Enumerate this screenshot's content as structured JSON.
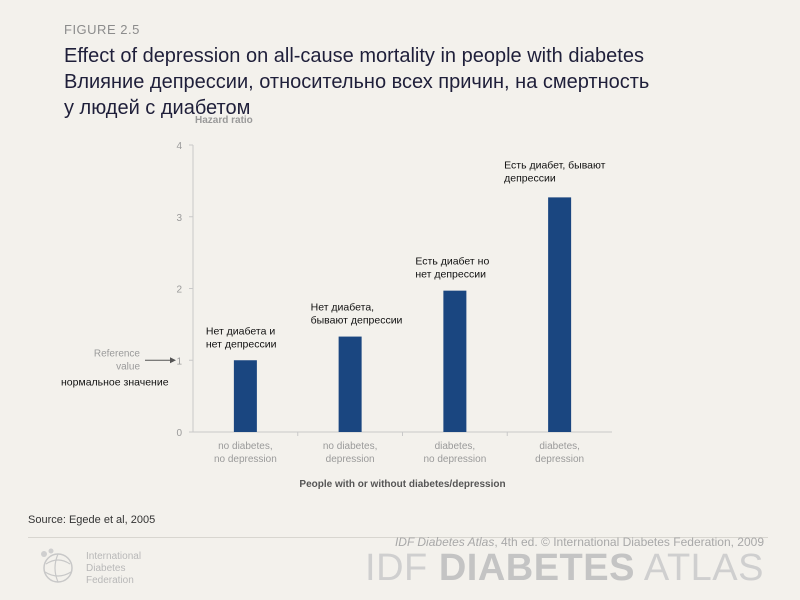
{
  "figure": {
    "label": "FIGURE  2.5",
    "title_en": "Effect of depression on all-cause  mortality in people with diabetes",
    "title_ru_line1": "Влияние депрессии, относительно всех причин, на смертность",
    "title_ru_line2": "у людей с диабетом"
  },
  "chart_data": {
    "type": "bar",
    "ylabel": "Hazard ratio",
    "xlabel": "People with or without diabetes/depression",
    "ylim": [
      0,
      4
    ],
    "yticks": [
      0,
      1,
      2,
      3,
      4
    ],
    "categories": [
      [
        "no diabetes,",
        "no depression"
      ],
      [
        "no diabetes,",
        "depression"
      ],
      [
        "diabetes,",
        "no depression"
      ],
      [
        "diabetes,",
        "depression"
      ]
    ],
    "values": [
      1.0,
      1.33,
      1.97,
      3.27
    ],
    "annotations": [
      [
        "Нет диабета и",
        "нет депрессии"
      ],
      [
        "Нет диабета,",
        "бывают депрессии"
      ],
      [
        "Есть диабет но",
        "нет депрессии"
      ],
      [
        "Есть диабет, бывают",
        "депрессии"
      ]
    ],
    "reference": {
      "lines": [
        "Reference",
        "value"
      ],
      "ru": "нормальное значение",
      "value": 1
    },
    "bar_color": "#1a4680"
  },
  "source": "Source: Egede et al, 2005",
  "footer": {
    "org_lines": [
      "International",
      "Diabetes",
      "Federation"
    ],
    "edition_italic": "IDF Diabetes Atlas",
    "edition_rest": ", 4th ed.  © International Diabetes Federation, 2009",
    "brand_light": "IDF ",
    "brand_bold": "DIABETES",
    "brand_end": " ATLAS"
  }
}
